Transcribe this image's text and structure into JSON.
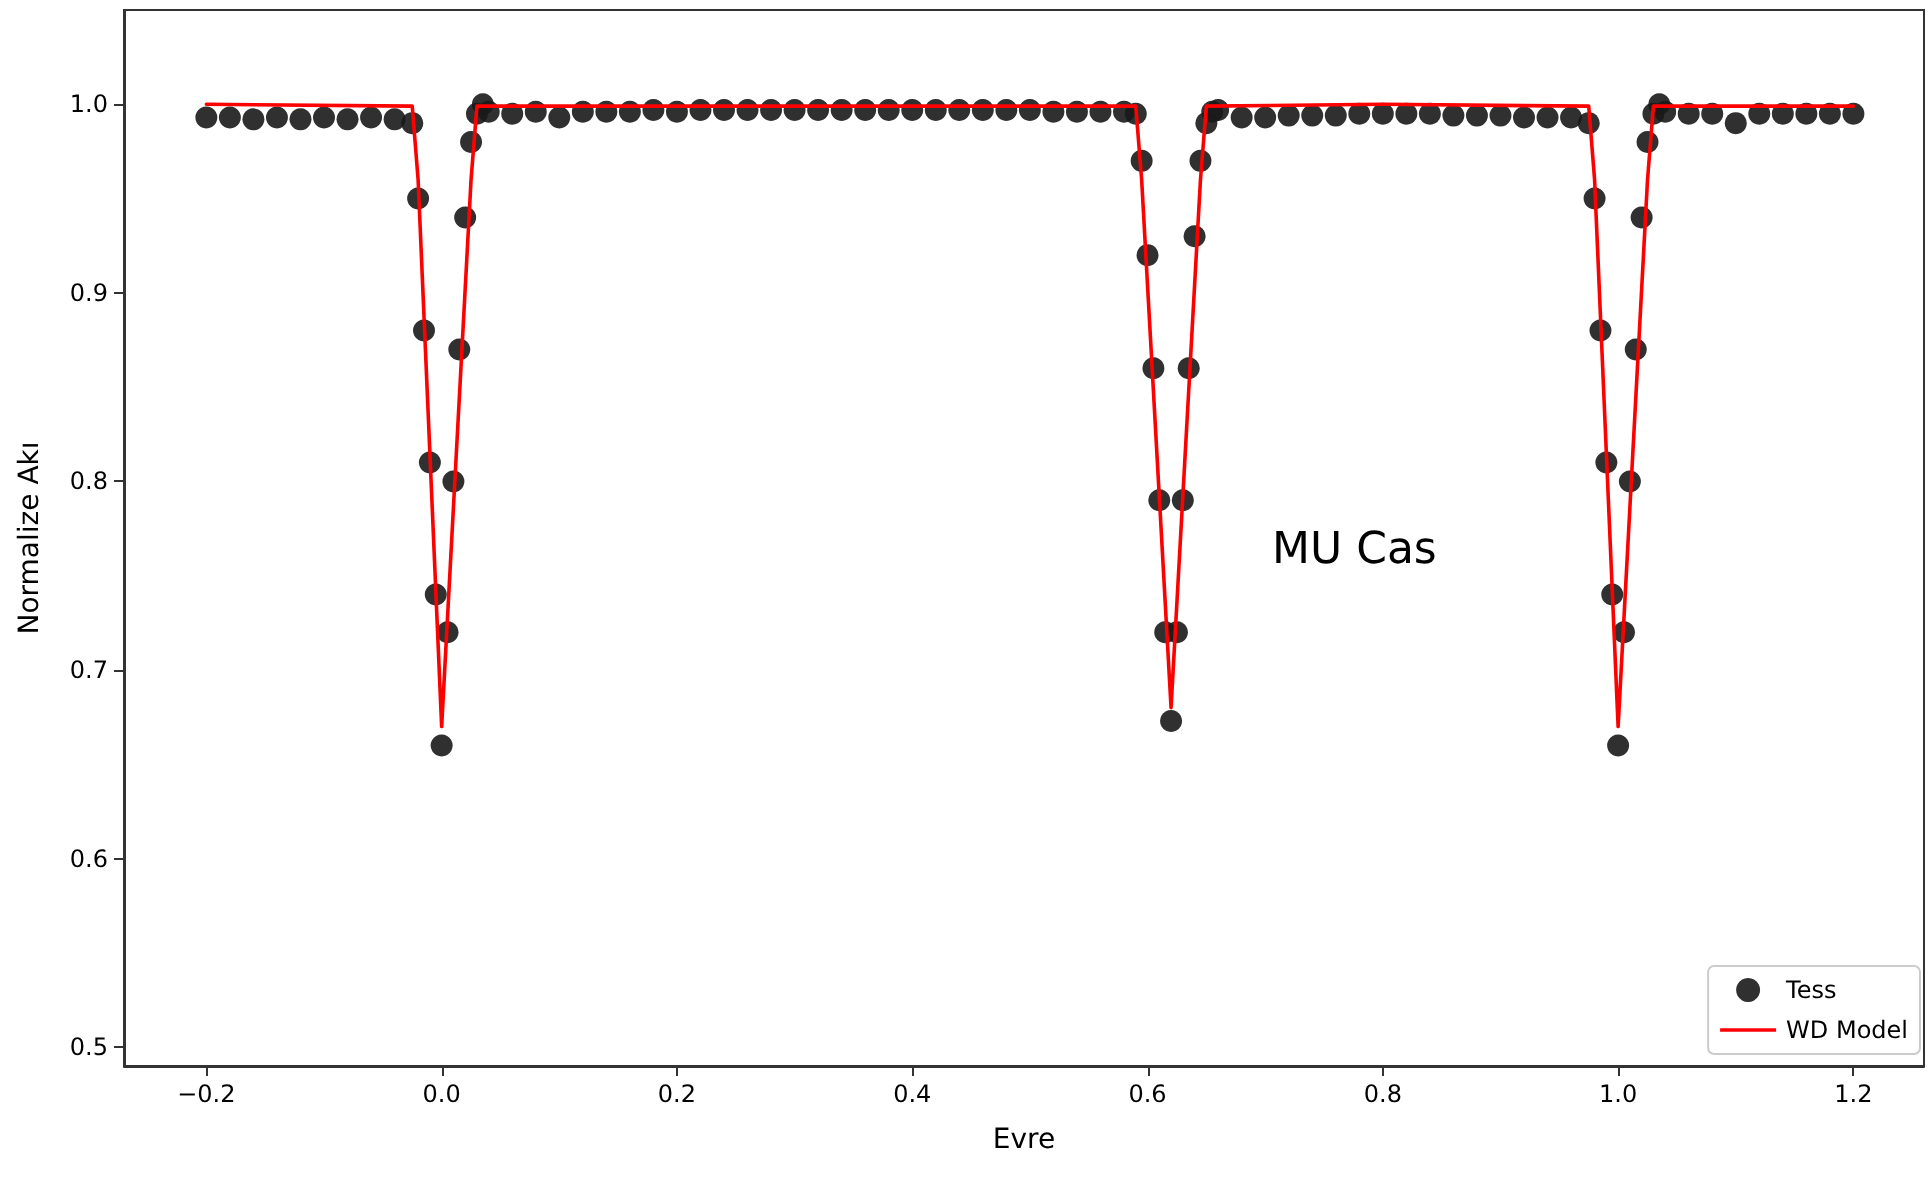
{
  "chart_data": {
    "type": "scatter",
    "xlabel": "Evre",
    "ylabel": "Normalize Akı",
    "annotations": [
      "MU Cas"
    ],
    "xlim": [
      -0.27,
      1.26
    ],
    "ylim": [
      0.49,
      1.05
    ],
    "xticks": [
      {
        "value": -0.2,
        "label": "−0.2"
      },
      {
        "value": 0,
        "label": "0.0"
      },
      {
        "value": 0.2,
        "label": "0.2"
      },
      {
        "value": 0.4,
        "label": "0.4"
      },
      {
        "value": 0.6,
        "label": "0.6"
      },
      {
        "value": 0.8,
        "label": "0.8"
      },
      {
        "value": 1,
        "label": "1.0"
      },
      {
        "value": 1.2,
        "label": "1.2"
      }
    ],
    "yticks": [
      0.5,
      0.6,
      0.7,
      0.8,
      0.9,
      {
        "value": 1,
        "label": "1.0"
      }
    ],
    "grid": false,
    "legend": "bottom right",
    "marker": "circle",
    "series": [
      {
        "name": "Tess",
        "color": "#1a1a1a",
        "x": [
          -0.2,
          -0.18,
          -0.16,
          -0.14,
          -0.12,
          -0.1,
          -0.08,
          -0.06,
          -0.04,
          -0.025,
          -0.02,
          -0.015,
          -0.01,
          -0.005,
          0,
          0.005,
          0.01,
          0.015,
          0.02,
          0.025,
          0.03,
          0.035,
          0.04,
          0.06,
          0.08,
          0.1,
          0.12,
          0.14,
          0.16,
          0.18,
          0.2,
          0.22,
          0.24,
          0.26,
          0.28,
          0.3,
          0.32,
          0.34,
          0.36,
          0.38,
          0.4,
          0.42,
          0.44,
          0.46,
          0.48,
          0.5,
          0.52,
          0.54,
          0.56,
          0.58,
          0.59,
          0.595,
          0.6,
          0.605,
          0.61,
          0.615,
          0.62,
          0.625,
          0.63,
          0.635,
          0.64,
          0.645,
          0.65,
          0.655,
          0.66,
          0.68,
          0.7,
          0.72,
          0.74,
          0.76,
          0.78,
          0.8,
          0.82,
          0.84,
          0.86,
          0.88,
          0.9,
          0.92,
          0.94,
          0.96,
          0.975,
          0.98,
          0.985,
          0.99,
          0.995,
          1,
          1.005,
          1.01,
          1.015,
          1.02,
          1.025,
          1.03,
          1.035,
          1.04,
          1.06,
          1.08,
          1.1,
          1.12,
          1.14,
          1.16,
          1.18,
          1.2
        ],
        "values": [
          0.993,
          0.993,
          0.992,
          0.993,
          0.992,
          0.993,
          0.992,
          0.993,
          0.992,
          0.99,
          0.95,
          0.88,
          0.81,
          0.74,
          0.66,
          0.72,
          0.8,
          0.87,
          0.94,
          0.98,
          0.995,
          1.0,
          0.996,
          0.995,
          0.996,
          0.993,
          0.996,
          0.996,
          0.996,
          0.997,
          0.996,
          0.997,
          0.997,
          0.997,
          0.997,
          0.997,
          0.997,
          0.997,
          0.997,
          0.997,
          0.997,
          0.997,
          0.997,
          0.997,
          0.997,
          0.997,
          0.996,
          0.996,
          0.996,
          0.996,
          0.995,
          0.97,
          0.92,
          0.86,
          0.79,
          0.72,
          0.673,
          0.72,
          0.79,
          0.86,
          0.93,
          0.97,
          0.99,
          0.996,
          0.997,
          0.993,
          0.993,
          0.994,
          0.994,
          0.994,
          0.995,
          0.995,
          0.995,
          0.995,
          0.994,
          0.994,
          0.994,
          0.993,
          0.993,
          0.993,
          0.99,
          0.95,
          0.88,
          0.81,
          0.74,
          0.66,
          0.72,
          0.8,
          0.87,
          0.94,
          0.98,
          0.995,
          1.0,
          0.996,
          0.995,
          0.995,
          0.99,
          0.995,
          0.995,
          0.995,
          0.995,
          0.995
        ]
      },
      {
        "name": "WD Model",
        "type": "line",
        "color": "#ff0000",
        "marker": "none",
        "x": [
          -0.2,
          -0.025,
          -0.02,
          0,
          0.025,
          0.03,
          0.59,
          0.595,
          0.62,
          0.645,
          0.65,
          0.8,
          0.975,
          0.98,
          1,
          1.025,
          1.03,
          1.2
        ],
        "values": [
          1.0,
          0.999,
          0.96,
          0.67,
          0.96,
          0.999,
          0.999,
          0.96,
          0.68,
          0.96,
          0.999,
          1.0,
          0.999,
          0.96,
          0.67,
          0.96,
          0.999,
          0.999
        ]
      }
    ]
  }
}
